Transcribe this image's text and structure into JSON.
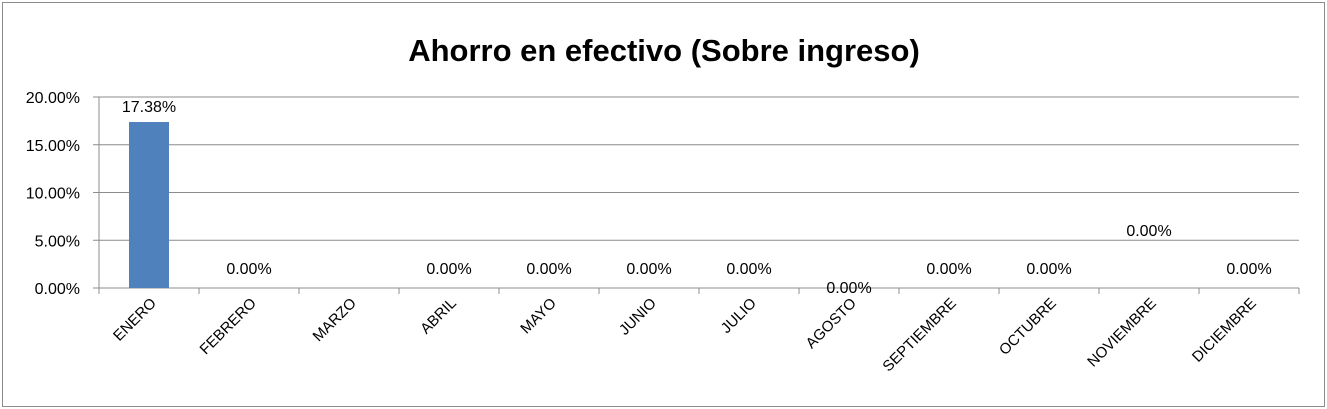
{
  "chart_data": {
    "type": "bar",
    "title": "Ahorro en efectivo (Sobre ingreso)",
    "categories": [
      "ENERO",
      "FEBRERO",
      "MARZO",
      "ABRIL",
      "MAYO",
      "JUNIO",
      "JULIO",
      "AGOSTO",
      "SEPTIEMBRE",
      "OCTUBRE",
      "NOVIEMBRE",
      "DICIEMBRE"
    ],
    "values": [
      17.38,
      0,
      0,
      0,
      0,
      0,
      0,
      0,
      0,
      0,
      0,
      0
    ],
    "data_labels": [
      "17.38%",
      "0.00%",
      "",
      "0.00%",
      "0.00%",
      "0.00%",
      "0.00%",
      "0.00%",
      "0.00%",
      "0.00%",
      "0.00%",
      "0.00%"
    ],
    "ylim": [
      0,
      20
    ],
    "yticks": [
      "0.00%",
      "5.00%",
      "10.00%",
      "15.00%",
      "20.00%"
    ],
    "ytick_values": [
      0,
      5,
      10,
      15,
      20
    ],
    "xlabel": "",
    "ylabel": "",
    "grid": true,
    "legend": "none",
    "bar_color": "#4f81bd"
  }
}
